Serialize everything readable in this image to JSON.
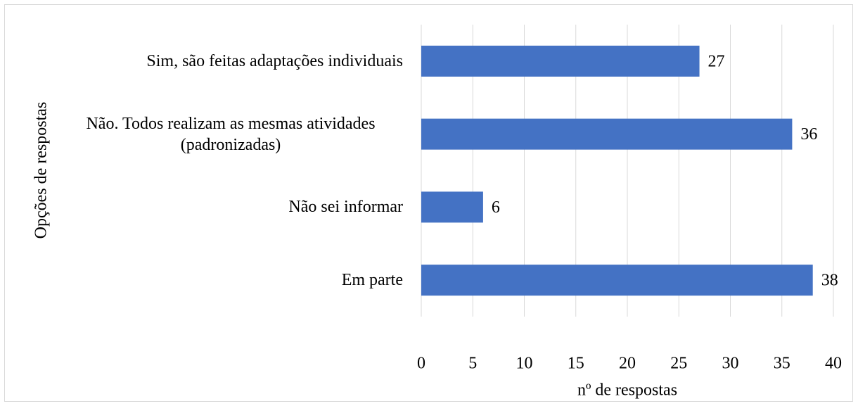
{
  "chart_data": {
    "type": "barh",
    "categories": [
      "Sim, são feitas adaptações individuais",
      "Não. Todos realizam as mesmas atividades (padronizadas)",
      "Não sei informar",
      "Em parte"
    ],
    "values": [
      27,
      36,
      6,
      38
    ],
    "color": "#4472c4",
    "xlim": [
      0,
      40
    ],
    "xticks": [
      0,
      5,
      10,
      15,
      20,
      25,
      30,
      35,
      40
    ],
    "grid": true,
    "xlabel": "nº de respostas",
    "ylabel": "Opções de respostas"
  }
}
